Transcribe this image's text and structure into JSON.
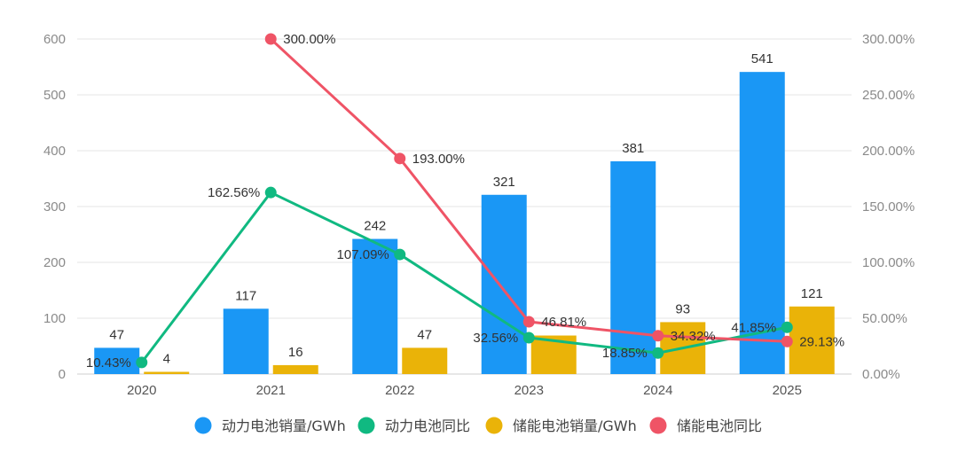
{
  "chart_data": {
    "type": "bar",
    "categories": [
      "2020",
      "2021",
      "2022",
      "2023",
      "2024",
      "2025"
    ],
    "y_left": {
      "min": 0,
      "max": 600,
      "ticks": [
        "0",
        "100",
        "200",
        "300",
        "400",
        "500",
        "600"
      ]
    },
    "y_right": {
      "min": 0,
      "max": 300,
      "ticks": [
        "0.00%",
        "50.00%",
        "100.00%",
        "150.00%",
        "200.00%",
        "250.00%",
        "300.00%"
      ]
    },
    "bar_series": [
      {
        "name": "动力电池销量/GWh",
        "color": "#1a97f5",
        "values": [
          47,
          117,
          242,
          321,
          381,
          541
        ],
        "labels": [
          "47",
          "117",
          "242",
          "321",
          "381",
          "541"
        ]
      },
      {
        "name": "储能电池销量/GWh",
        "color": "#eab308",
        "values": [
          4,
          16,
          47,
          69,
          93,
          121
        ],
        "labels": [
          "4",
          "16",
          "47",
          "",
          "93",
          "121"
        ]
      }
    ],
    "line_series": [
      {
        "name": "动力电池同比",
        "color": "#10b981",
        "values": [
          10.43,
          162.56,
          107.09,
          32.56,
          18.85,
          41.85
        ],
        "labels": [
          "10.43%",
          "162.56%",
          "107.09%",
          "32.56%",
          "18.85%",
          "41.85%"
        ]
      },
      {
        "name": "储能电池同比",
        "color": "#ef5466",
        "values": [
          null,
          300.0,
          193.0,
          46.81,
          34.32,
          29.13
        ],
        "labels": [
          "",
          "300.00%",
          "193.00%",
          "46.81%",
          "34.32%",
          "29.13%"
        ]
      }
    ],
    "legend": [
      {
        "name": "动力电池销量/GWh",
        "color": "#1a97f5"
      },
      {
        "name": "动力电池同比",
        "color": "#10b981"
      },
      {
        "name": "储能电池销量/GWh",
        "color": "#eab308"
      },
      {
        "name": "储能电池同比",
        "color": "#ef5466"
      }
    ],
    "legend_position": "bottom-center",
    "grid": true
  }
}
